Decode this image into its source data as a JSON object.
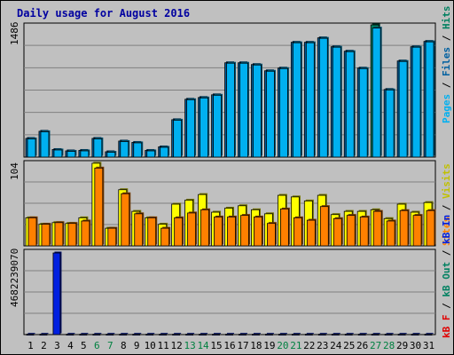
{
  "title": "Daily usage for August 2016",
  "colors": {
    "pages": "#00b0f0",
    "files": "#0060a0",
    "hits": "#008060",
    "visits": "#ffff00",
    "sites": "#ff8000",
    "kbin": "#0020e0",
    "kbout": "#008060",
    "kbf": "#e00000",
    "weekend": "#008040",
    "grid": "#808080"
  },
  "legend": {
    "top": [
      {
        "text": "Pages",
        "color": "#00b0f0"
      },
      {
        "text": " / ",
        "color": "#000000"
      },
      {
        "text": "Files",
        "color": "#0060a0"
      },
      {
        "text": " / ",
        "color": "#000000"
      },
      {
        "text": "Hits",
        "color": "#008060"
      }
    ],
    "middle": [
      {
        "text": "Sites",
        "color": "#ff8000"
      },
      {
        "text": " / ",
        "color": "#000000"
      },
      {
        "text": "Visits",
        "color": "#c0c000"
      }
    ],
    "bottom": [
      {
        "text": "kB F",
        "color": "#e00000"
      },
      {
        "text": " / ",
        "color": "#000000"
      },
      {
        "text": "kB Out",
        "color": "#008060"
      },
      {
        "text": " / ",
        "color": "#000000"
      },
      {
        "text": "kB In",
        "color": "#0020e0"
      }
    ]
  },
  "chart_data": [
    {
      "type": "bar",
      "panel": "hits-files-pages",
      "ymax_label": "1486",
      "ylim": [
        0,
        1486
      ],
      "categories": [
        "1",
        "2",
        "3",
        "4",
        "5",
        "6",
        "7",
        "8",
        "9",
        "10",
        "11",
        "12",
        "13",
        "14",
        "15",
        "16",
        "17",
        "18",
        "19",
        "20",
        "21",
        "22",
        "23",
        "24",
        "25",
        "26",
        "27",
        "28",
        "29",
        "30",
        "31"
      ],
      "weekend_days": [
        "6",
        "7",
        "13",
        "14",
        "20",
        "21",
        "27",
        "28"
      ],
      "series": [
        {
          "name": "Hits",
          "values": [
            210,
            290,
            85,
            70,
            75,
            210,
            60,
            180,
            165,
            75,
            115,
            420,
            650,
            670,
            700,
            1060,
            1060,
            1040,
            970,
            1000,
            1290,
            1290,
            1340,
            1240,
            1190,
            1000,
            1486,
            760,
            1080,
            1240,
            1300
          ]
        },
        {
          "name": "Files",
          "values": [
            210,
            290,
            85,
            70,
            75,
            210,
            60,
            180,
            165,
            75,
            115,
            420,
            650,
            670,
            700,
            1060,
            1060,
            1040,
            970,
            1000,
            1290,
            1290,
            1340,
            1240,
            1190,
            1000,
            1486,
            760,
            1080,
            1240,
            1300
          ]
        },
        {
          "name": "Pages",
          "values": [
            205,
            285,
            80,
            65,
            70,
            205,
            55,
            175,
            160,
            70,
            110,
            415,
            645,
            665,
            695,
            1055,
            1055,
            1035,
            965,
            995,
            1285,
            1285,
            1335,
            1235,
            1185,
            995,
            1450,
            755,
            1075,
            1235,
            1295
          ]
        }
      ]
    },
    {
      "type": "bar",
      "panel": "visits-sites",
      "ymax_label": "104",
      "ylim": [
        0,
        104
      ],
      "categories": [
        "1",
        "2",
        "3",
        "4",
        "5",
        "6",
        "7",
        "8",
        "9",
        "10",
        "11",
        "12",
        "13",
        "14",
        "15",
        "16",
        "17",
        "18",
        "19",
        "20",
        "21",
        "22",
        "23",
        "24",
        "25",
        "26",
        "27",
        "28",
        "29",
        "30",
        "31"
      ],
      "series": [
        {
          "name": "Visits",
          "values": [
            35,
            27,
            29,
            28,
            35,
            103,
            22,
            70,
            43,
            35,
            27,
            52,
            57,
            64,
            42,
            47,
            50,
            45,
            40,
            63,
            61,
            56,
            63,
            39,
            43,
            43,
            45,
            34,
            52,
            42,
            54
          ]
        },
        {
          "name": "Sites",
          "values": [
            35,
            27,
            29,
            28,
            31,
            97,
            22,
            65,
            40,
            35,
            22,
            35,
            41,
            45,
            36,
            36,
            38,
            36,
            28,
            46,
            35,
            32,
            49,
            34,
            38,
            36,
            43,
            31,
            44,
            38,
            44
          ]
        }
      ]
    },
    {
      "type": "bar",
      "panel": "kbytes",
      "ymax_label": "4682239070",
      "ylim": [
        0,
        4682239070
      ],
      "categories": [
        "1",
        "2",
        "3",
        "4",
        "5",
        "6",
        "7",
        "8",
        "9",
        "10",
        "11",
        "12",
        "13",
        "14",
        "15",
        "16",
        "17",
        "18",
        "19",
        "20",
        "21",
        "22",
        "23",
        "24",
        "25",
        "26",
        "27",
        "28",
        "29",
        "30",
        "31"
      ],
      "series": [
        {
          "name": "kB In",
          "values": [
            20000000,
            20000000,
            4682239070,
            20000000,
            20000000,
            20000000,
            20000000,
            20000000,
            20000000,
            20000000,
            20000000,
            20000000,
            20000000,
            20000000,
            20000000,
            20000000,
            20000000,
            20000000,
            20000000,
            20000000,
            20000000,
            20000000,
            20000000,
            20000000,
            20000000,
            20000000,
            20000000,
            20000000,
            20000000,
            20000000,
            20000000
          ]
        }
      ]
    }
  ]
}
